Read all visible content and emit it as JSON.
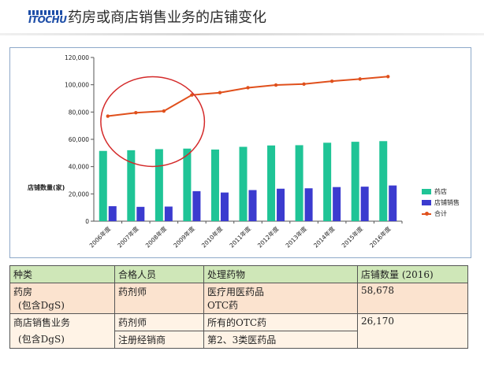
{
  "header": {
    "logo_text": "ITOCHU",
    "title": "药房或商店销售业务的店铺变化"
  },
  "chart_data": {
    "type": "bar",
    "title": "",
    "ylabel": "店铺数量(家)",
    "xlabel": "",
    "ylim": [
      0,
      120000
    ],
    "yticks": [
      "0",
      "20,000",
      "40,000",
      "60,000",
      "80,000",
      "100,000",
      "120,000"
    ],
    "categories": [
      "2006年度",
      "2007年度",
      "2008年度",
      "2009年度",
      "2010年度",
      "2011年度",
      "2012年度",
      "2013年度",
      "2014年度",
      "2015年度",
      "2016年度"
    ],
    "series": [
      {
        "name": "药店",
        "type": "bar",
        "color": "#1fc496",
        "values": [
          51500,
          52000,
          52800,
          53200,
          52500,
          54500,
          55500,
          55700,
          57500,
          58200,
          58678
        ]
      },
      {
        "name": "店铺销售",
        "type": "bar",
        "color": "#3b3bcf",
        "values": [
          11000,
          10500,
          10700,
          22000,
          21000,
          22800,
          23800,
          24100,
          25000,
          25300,
          26170
        ]
      },
      {
        "name": "合计",
        "type": "line",
        "color": "#e0501c",
        "values": [
          77000,
          79500,
          80700,
          92500,
          94200,
          97800,
          99800,
          100500,
          102600,
          104200,
          106000
        ]
      }
    ],
    "legend_position": "right",
    "grid": false,
    "annotation": "red ellipse around 2007-2009"
  },
  "table": {
    "headers": [
      "种类",
      "合格人员",
      "处理药物",
      "店铺数量 (2016)"
    ],
    "rows": [
      {
        "type": "药房",
        "type_sub": "(包含DgS)",
        "staff": "药剂师",
        "drugs": "医疗用医药品",
        "drugs2": "OTC药",
        "count": "58,678"
      },
      {
        "type": "商店销售业务",
        "type_sub": "(包含DgS)",
        "staff": "药剂师",
        "drugs": "所有的OTC药",
        "count": "26,170",
        "staff2": "注册经销商",
        "drugs_b": "第2、3类医药品"
      }
    ]
  }
}
